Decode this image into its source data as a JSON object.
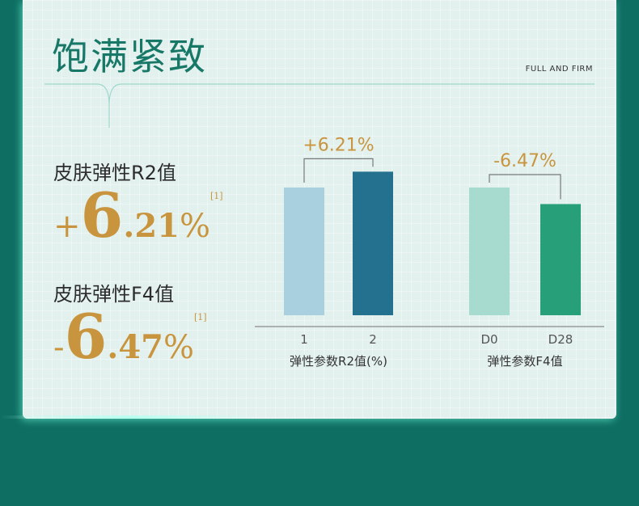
{
  "header": {
    "title": "饱满紧致",
    "subtitle": "FULL AND FIRM"
  },
  "stats": [
    {
      "label": "皮肤弹性R2值",
      "value": {
        "sign": "+",
        "int": "6",
        "frac": ".21",
        "unit": "%"
      },
      "note": "[1]"
    },
    {
      "label": "皮肤弹性F4值",
      "value": {
        "sign": "-",
        "int": "6",
        "frac": ".47",
        "unit": "%"
      },
      "note": "[1]"
    }
  ],
  "chart_data": [
    {
      "type": "bar",
      "categories": [
        "1",
        "2"
      ],
      "values": [
        100,
        106.21
      ],
      "colors": [
        "#a9d0df",
        "#23718f"
      ],
      "annotation": "+6.21%",
      "xlabel": "弹性参数R2值(%)"
    },
    {
      "type": "bar",
      "categories": [
        "D0",
        "D28"
      ],
      "values": [
        100,
        93.53
      ],
      "colors": [
        "#a8dbd0",
        "#27a07a"
      ],
      "annotation": "-6.47%",
      "xlabel": "弹性参数F4值"
    }
  ]
}
